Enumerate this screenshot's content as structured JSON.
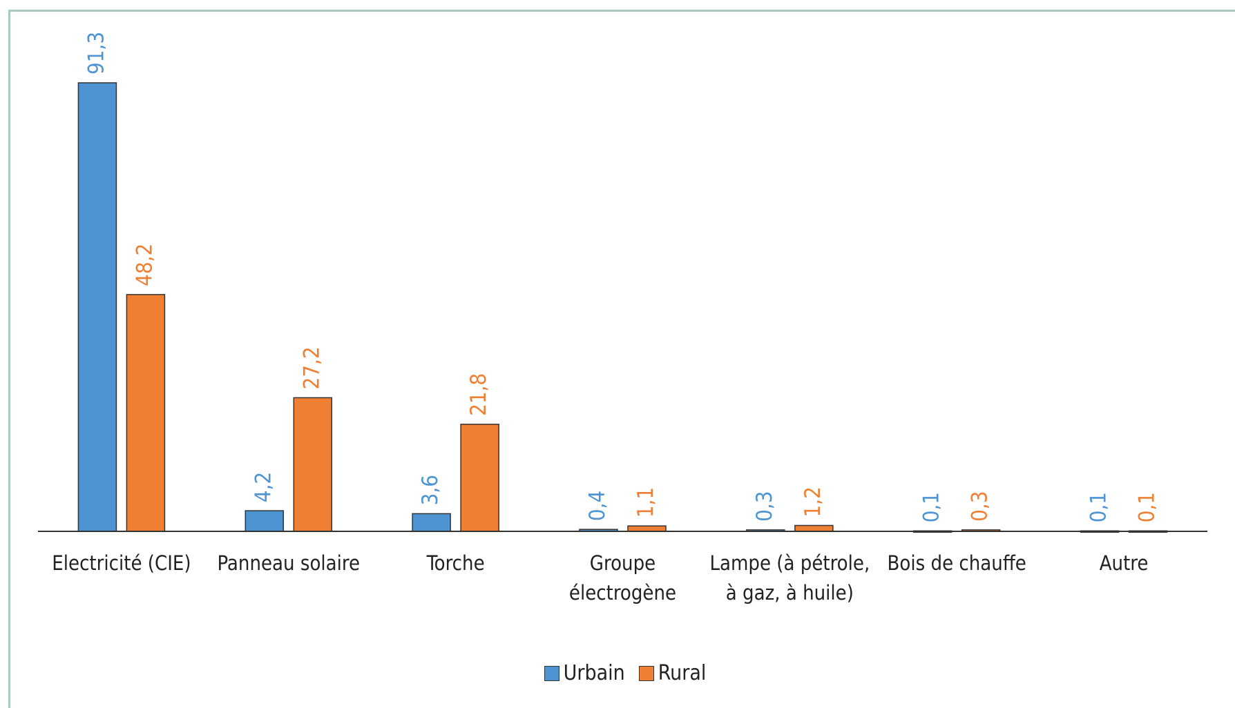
{
  "chart_data": {
    "type": "bar",
    "categories": [
      "Electricité (CIE)",
      "Panneau solaire",
      "Torche",
      "Groupe électrogène",
      "Lampe (à pétrole, à gaz, à huile)",
      "Bois de chauffe",
      "Autre"
    ],
    "series": [
      {
        "name": "Urbain",
        "color": "#4e94d2",
        "values": [
          91.3,
          4.2,
          3.6,
          0.4,
          0.3,
          0.1,
          0.1
        ],
        "value_labels": [
          "91,3",
          "4,2",
          "3,6",
          "0,4",
          "0,3",
          "0,1",
          "0,1"
        ]
      },
      {
        "name": "Rural",
        "color": "#ef7f33",
        "values": [
          48.2,
          27.2,
          21.8,
          1.1,
          1.2,
          0.3,
          0.1
        ],
        "value_labels": [
          "48,2",
          "27,2",
          "21,8",
          "1,1",
          "1,2",
          "0,3",
          "0,1"
        ]
      }
    ],
    "legend": "bottom"
  }
}
